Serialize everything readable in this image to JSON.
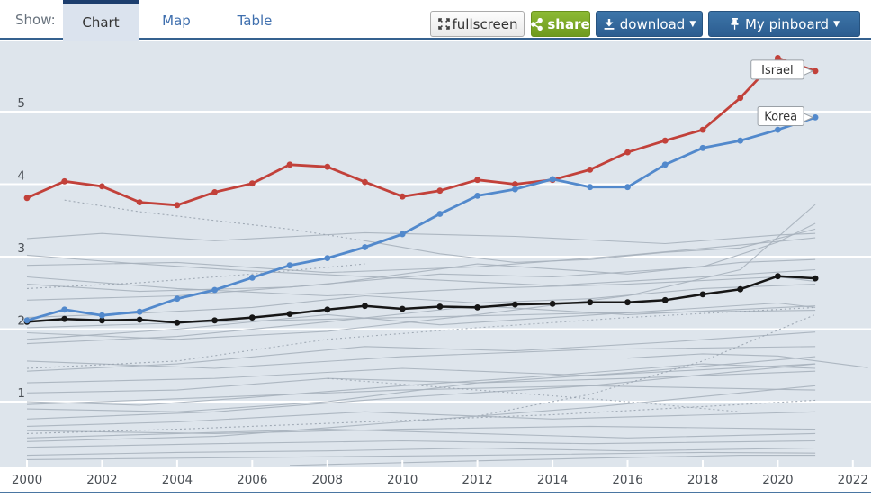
{
  "toolbar": {
    "show_label": "Show:",
    "tabs": [
      {
        "label": "Chart",
        "active": true
      },
      {
        "label": "Map",
        "active": false
      },
      {
        "label": "Table",
        "active": false
      }
    ],
    "buttons": {
      "fullscreen": "fullscreen",
      "share": "share",
      "download": "download",
      "pinboard": "My pinboard",
      "caret": "▼"
    }
  },
  "chart_data": {
    "type": "line",
    "x": [
      2000,
      2001,
      2002,
      2003,
      2004,
      2005,
      2006,
      2007,
      2008,
      2009,
      2010,
      2011,
      2012,
      2013,
      2014,
      2015,
      2016,
      2017,
      2018,
      2019,
      2020,
      2021
    ],
    "xticks": [
      2000,
      2002,
      2004,
      2006,
      2008,
      2010,
      2012,
      2014,
      2016,
      2018,
      2020,
      2022
    ],
    "yticks": [
      1,
      2,
      3,
      4,
      5
    ],
    "xlim": [
      1999.3,
      2022.5
    ],
    "ylim": [
      0,
      6.0
    ],
    "grid": "horizontal-white-lines",
    "legend_position": "inline-callouts",
    "title": "",
    "xlabel": "",
    "ylabel": "",
    "series": [
      {
        "name": "Israel",
        "color": "#c2413a",
        "marker": true,
        "values": [
          3.81,
          4.04,
          3.97,
          3.75,
          3.71,
          3.89,
          4.01,
          4.27,
          4.24,
          4.03,
          3.83,
          3.91,
          4.06,
          4.0,
          4.06,
          4.2,
          4.44,
          4.6,
          4.75,
          5.19,
          5.74,
          5.56
        ]
      },
      {
        "name": "Korea",
        "color": "#5289cc",
        "marker": true,
        "values": [
          2.12,
          2.27,
          2.19,
          2.24,
          2.42,
          2.54,
          2.71,
          2.88,
          2.98,
          3.13,
          3.31,
          3.59,
          3.84,
          3.93,
          4.07,
          3.96,
          3.96,
          4.27,
          4.5,
          4.6,
          4.75,
          4.92
        ]
      },
      {
        "name": "",
        "color": "#161616",
        "marker": true,
        "values": [
          2.1,
          2.14,
          2.12,
          2.13,
          2.09,
          2.12,
          2.16,
          2.21,
          2.27,
          2.32,
          2.28,
          2.31,
          2.3,
          2.34,
          2.35,
          2.37,
          2.37,
          2.4,
          2.48,
          2.55,
          2.73,
          2.7
        ]
      }
    ],
    "callouts": [
      {
        "label": "Israel",
        "year": 2021,
        "value": 5.56
      },
      {
        "label": "Korea",
        "year": 2021,
        "value": 4.92
      }
    ],
    "background_line_color": "#a7b1bc",
    "background_series": [
      {
        "style": "solid",
        "points": [
          [
            2000,
            2.88
          ],
          [
            2004,
            2.92
          ],
          [
            2008,
            2.78
          ],
          [
            2012,
            2.86
          ],
          [
            2016,
            3.02
          ],
          [
            2019,
            3.16
          ],
          [
            2021,
            3.26
          ]
        ]
      },
      {
        "style": "solid",
        "points": [
          [
            2000,
            2.62
          ],
          [
            2003,
            2.52
          ],
          [
            2007,
            2.58
          ],
          [
            2011,
            2.76
          ],
          [
            2014,
            2.72
          ],
          [
            2018,
            2.86
          ],
          [
            2020,
            3.2
          ],
          [
            2021,
            3.46
          ]
        ]
      },
      {
        "style": "solid",
        "points": [
          [
            2000,
            3.25
          ],
          [
            2002,
            3.32
          ],
          [
            2005,
            3.22
          ],
          [
            2009,
            3.33
          ],
          [
            2013,
            3.28
          ],
          [
            2017,
            3.18
          ],
          [
            2020,
            3.3
          ],
          [
            2021,
            3.32
          ]
        ]
      },
      {
        "style": "dotted",
        "points": [
          [
            2001,
            3.78
          ],
          [
            2003,
            3.62
          ],
          [
            2005,
            3.5
          ],
          [
            2007,
            3.38
          ],
          [
            2009,
            3.22
          ]
        ]
      },
      {
        "style": "solid",
        "points": [
          [
            2009,
            3.22
          ],
          [
            2011,
            3.04
          ],
          [
            2013,
            2.92
          ],
          [
            2015,
            2.96
          ],
          [
            2017,
            3.06
          ],
          [
            2019,
            3.12
          ],
          [
            2021,
            3.38
          ]
        ]
      },
      {
        "style": "solid",
        "points": [
          [
            2000,
            2.4
          ],
          [
            2004,
            2.46
          ],
          [
            2008,
            2.62
          ],
          [
            2012,
            2.9
          ],
          [
            2016,
            2.76
          ],
          [
            2019,
            2.92
          ],
          [
            2021,
            2.96
          ]
        ]
      },
      {
        "style": "solid",
        "points": [
          [
            2000,
            1.95
          ],
          [
            2004,
            1.86
          ],
          [
            2008,
            1.97
          ],
          [
            2012,
            2.2
          ],
          [
            2016,
            2.46
          ],
          [
            2019,
            2.82
          ],
          [
            2021,
            3.72
          ]
        ]
      },
      {
        "style": "solid",
        "points": [
          [
            2000,
            2.02
          ],
          [
            2005,
            2.1
          ],
          [
            2010,
            2.16
          ],
          [
            2015,
            2.22
          ],
          [
            2021,
            2.26
          ]
        ]
      },
      {
        "style": "solid",
        "points": [
          [
            2000,
            1.8
          ],
          [
            2004,
            1.9
          ],
          [
            2008,
            2.1
          ],
          [
            2012,
            2.32
          ],
          [
            2016,
            2.2
          ],
          [
            2021,
            2.32
          ]
        ]
      },
      {
        "style": "solid",
        "points": [
          [
            2000,
            2.16
          ],
          [
            2003,
            2.22
          ],
          [
            2006,
            2.3
          ],
          [
            2009,
            2.46
          ],
          [
            2012,
            2.36
          ],
          [
            2015,
            2.42
          ],
          [
            2018,
            2.56
          ],
          [
            2021,
            2.62
          ]
        ]
      },
      {
        "style": "solid",
        "points": [
          [
            2000,
            1.86
          ],
          [
            2004,
            2.0
          ],
          [
            2008,
            2.2
          ],
          [
            2011,
            2.06
          ],
          [
            2014,
            2.16
          ],
          [
            2017,
            2.26
          ],
          [
            2020,
            2.36
          ],
          [
            2021,
            2.3
          ]
        ]
      },
      {
        "style": "solid",
        "points": [
          [
            2000,
            3.02
          ],
          [
            2003,
            2.9
          ],
          [
            2006,
            2.8
          ],
          [
            2010,
            2.7
          ],
          [
            2014,
            2.6
          ],
          [
            2018,
            2.72
          ],
          [
            2021,
            2.82
          ]
        ]
      },
      {
        "style": "solid",
        "points": [
          [
            2000,
            2.72
          ],
          [
            2004,
            2.56
          ],
          [
            2008,
            2.46
          ],
          [
            2012,
            2.56
          ],
          [
            2016,
            2.62
          ],
          [
            2020,
            2.72
          ],
          [
            2021,
            2.66
          ]
        ]
      },
      {
        "style": "solid",
        "points": [
          [
            2000,
            1.56
          ],
          [
            2005,
            1.46
          ],
          [
            2010,
            1.62
          ],
          [
            2015,
            1.72
          ],
          [
            2021,
            1.76
          ]
        ]
      },
      {
        "style": "solid",
        "points": [
          [
            2000,
            1.42
          ],
          [
            2004,
            1.52
          ],
          [
            2009,
            1.76
          ],
          [
            2013,
            1.7
          ],
          [
            2017,
            1.82
          ],
          [
            2021,
            1.96
          ]
        ]
      },
      {
        "style": "solid",
        "points": [
          [
            2000,
            1.26
          ],
          [
            2005,
            1.32
          ],
          [
            2010,
            1.46
          ],
          [
            2015,
            1.36
          ],
          [
            2021,
            1.52
          ]
        ]
      },
      {
        "style": "solid",
        "points": [
          [
            2000,
            1.12
          ],
          [
            2004,
            1.16
          ],
          [
            2008,
            1.32
          ],
          [
            2012,
            1.26
          ],
          [
            2016,
            1.32
          ],
          [
            2021,
            1.42
          ]
        ]
      },
      {
        "style": "solid",
        "points": [
          [
            2000,
            0.96
          ],
          [
            2005,
            1.06
          ],
          [
            2010,
            1.16
          ],
          [
            2015,
            1.22
          ],
          [
            2019,
            1.42
          ],
          [
            2021,
            1.52
          ]
        ]
      },
      {
        "style": "solid",
        "points": [
          [
            2000,
            0.9
          ],
          [
            2004,
            0.86
          ],
          [
            2008,
            1.0
          ],
          [
            2012,
            1.26
          ],
          [
            2016,
            1.4
          ],
          [
            2021,
            1.62
          ]
        ]
      },
      {
        "style": "solid",
        "points": [
          [
            2000,
            1.0
          ],
          [
            2003,
            0.95
          ],
          [
            2006,
            1.06
          ],
          [
            2010,
            1.22
          ],
          [
            2014,
            1.36
          ],
          [
            2018,
            1.52
          ],
          [
            2021,
            1.46
          ]
        ]
      },
      {
        "style": "solid",
        "points": [
          [
            2000,
            0.76
          ],
          [
            2005,
            0.86
          ],
          [
            2010,
            1.06
          ],
          [
            2015,
            1.22
          ],
          [
            2021,
            1.16
          ]
        ]
      },
      {
        "style": "solid",
        "points": [
          [
            2000,
            0.66
          ],
          [
            2004,
            0.72
          ],
          [
            2009,
            0.86
          ],
          [
            2014,
            0.76
          ],
          [
            2021,
            0.86
          ]
        ]
      },
      {
        "style": "solid",
        "points": [
          [
            2000,
            0.6
          ],
          [
            2005,
            0.56
          ],
          [
            2010,
            0.62
          ],
          [
            2015,
            0.66
          ],
          [
            2021,
            0.62
          ]
        ]
      },
      {
        "style": "solid",
        "points": [
          [
            2000,
            0.5
          ],
          [
            2004,
            0.56
          ],
          [
            2008,
            0.62
          ],
          [
            2012,
            0.56
          ],
          [
            2016,
            0.5
          ],
          [
            2021,
            0.56
          ]
        ]
      },
      {
        "style": "solid",
        "points": [
          [
            2000,
            0.45
          ],
          [
            2005,
            0.52
          ],
          [
            2010,
            0.72
          ],
          [
            2015,
            0.92
          ],
          [
            2019,
            1.12
          ],
          [
            2021,
            1.22
          ]
        ]
      },
      {
        "style": "solid",
        "points": [
          [
            2000,
            0.37
          ],
          [
            2005,
            0.42
          ],
          [
            2010,
            0.46
          ],
          [
            2015,
            0.42
          ],
          [
            2021,
            0.46
          ]
        ]
      },
      {
        "style": "solid",
        "points": [
          [
            2000,
            0.26
          ],
          [
            2004,
            0.3
          ],
          [
            2008,
            0.32
          ],
          [
            2012,
            0.36
          ],
          [
            2016,
            0.32
          ],
          [
            2021,
            0.36
          ]
        ]
      },
      {
        "style": "solid",
        "points": [
          [
            2000,
            0.2
          ],
          [
            2006,
            0.23
          ],
          [
            2012,
            0.26
          ],
          [
            2018,
            0.3
          ],
          [
            2021,
            0.29
          ]
        ]
      },
      {
        "style": "solid",
        "points": [
          [
            2007,
            0.12
          ],
          [
            2011,
            0.17
          ],
          [
            2015,
            0.22
          ],
          [
            2019,
            0.26
          ],
          [
            2021,
            0.26
          ]
        ]
      },
      {
        "style": "solid",
        "points": [
          [
            2016,
            1.6
          ],
          [
            2018,
            1.66
          ],
          [
            2020,
            1.63
          ],
          [
            2022.4,
            1.47
          ]
        ]
      },
      {
        "style": "dotted",
        "points": [
          [
            2000,
            2.56
          ],
          [
            2003,
            2.64
          ],
          [
            2006,
            2.76
          ],
          [
            2009,
            2.9
          ]
        ]
      },
      {
        "style": "dotted",
        "points": [
          [
            2000,
            1.46
          ],
          [
            2004,
            1.56
          ],
          [
            2008,
            1.86
          ],
          [
            2012,
            2.02
          ],
          [
            2016,
            2.16
          ],
          [
            2021,
            2.3
          ]
        ]
      },
      {
        "style": "dotted",
        "points": [
          [
            2008,
            1.32
          ],
          [
            2012,
            1.16
          ],
          [
            2016,
            1.0
          ],
          [
            2019,
            0.86
          ]
        ]
      },
      {
        "style": "dotted",
        "points": [
          [
            2012,
            0.8
          ],
          [
            2015,
            1.1
          ],
          [
            2018,
            1.56
          ],
          [
            2021,
            2.2
          ]
        ]
      },
      {
        "style": "dotted",
        "points": [
          [
            2000,
            0.56
          ],
          [
            2004,
            0.62
          ],
          [
            2009,
            0.72
          ],
          [
            2014,
            0.82
          ],
          [
            2019,
            0.96
          ],
          [
            2021,
            1.02
          ]
        ]
      }
    ],
    "colors": {
      "plot_background": "#dee5ec",
      "gridline": "#ffffff",
      "axis_text": "#4a4f55",
      "bottom_rule": "#4a76a2"
    }
  }
}
